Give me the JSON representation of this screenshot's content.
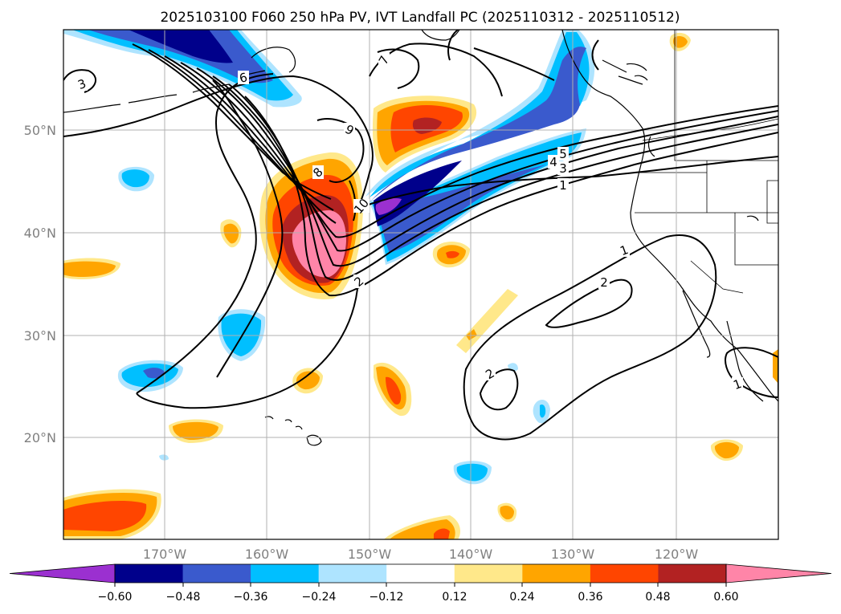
{
  "title": "2025103100 F060 250 hPa PV, IVT Landfall PC (2025110312 - 2025110512)",
  "latitude_labels": [
    "50°N",
    "40°N",
    "30°N",
    "20°N"
  ],
  "longitude_labels": [
    "170°W",
    "160°W",
    "150°W",
    "140°W",
    "130°W",
    "120°W"
  ],
  "colorbar": {
    "tick_labels": [
      "−0.60",
      "−0.48",
      "−0.36",
      "−0.24",
      "−0.12",
      "0.12",
      "0.24",
      "0.36",
      "0.48",
      "0.60"
    ],
    "colors": [
      "#9b30d0",
      "#00008b",
      "#3a5acd",
      "#00bfff",
      "#aee4ff",
      "#ffffff",
      "#ffe88a",
      "#ffa500",
      "#ff4500",
      "#b22222",
      "#ff85a8"
    ]
  },
  "contour_labels": [
    "3",
    "6",
    "7",
    "9",
    "8",
    "10",
    "2",
    "5",
    "4",
    "3",
    "1",
    "1",
    "2",
    "2",
    "1"
  ],
  "chart_data": {
    "type": "map",
    "levels": [
      -0.6,
      -0.48,
      -0.36,
      -0.24,
      -0.12,
      0.12,
      0.24,
      0.36,
      0.48,
      0.6
    ],
    "lat_range_ticks": [
      50,
      40,
      30,
      20
    ],
    "lon_range_ticks": [
      -170,
      -160,
      -150,
      -140,
      -130,
      -120
    ],
    "grid": true
  }
}
